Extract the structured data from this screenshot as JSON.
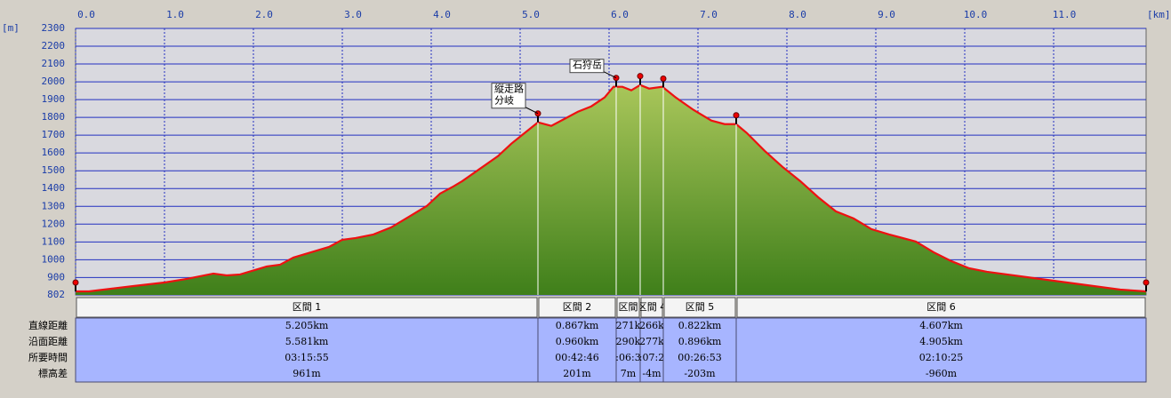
{
  "chart_data": {
    "type": "area",
    "x_unit": "[km]",
    "y_unit": "[m]",
    "xlim": [
      0,
      12.04
    ],
    "ylim": [
      802,
      2300
    ],
    "xticks": [
      {
        "value": 0,
        "label": "0.0"
      },
      {
        "value": 1,
        "label": "1.0"
      },
      {
        "value": 2,
        "label": "2.0"
      },
      {
        "value": 3,
        "label": "3.0"
      },
      {
        "value": 4,
        "label": "4.0"
      },
      {
        "value": 5,
        "label": "5.0"
      },
      {
        "value": 6,
        "label": "6.0"
      },
      {
        "value": 7,
        "label": "7.0"
      },
      {
        "value": 8,
        "label": "8.0"
      },
      {
        "value": 9,
        "label": "9.0"
      },
      {
        "value": 10,
        "label": "10.0"
      },
      {
        "value": 11,
        "label": "11.0"
      }
    ],
    "yticks": [
      802,
      900,
      1000,
      1100,
      1200,
      1300,
      1400,
      1500,
      1600,
      1700,
      1800,
      1900,
      2000,
      2100,
      2200,
      2300
    ],
    "grid": true,
    "series": [
      {
        "color": "#ee1111",
        "x": [
          0,
          0.15,
          0.65,
          1.0,
          1.25,
          1.55,
          1.7,
          1.85,
          2.15,
          2.3,
          2.45,
          2.65,
          2.85,
          3.0,
          3.15,
          3.35,
          3.55,
          3.75,
          3.95,
          4.1,
          4.25,
          4.35,
          4.55,
          4.75,
          4.9,
          5.05,
          5.2,
          5.35,
          5.5,
          5.65,
          5.8,
          5.95,
          6.05,
          6.15,
          6.25,
          6.35,
          6.45,
          6.6,
          6.75,
          6.95,
          7.15,
          7.3,
          7.43,
          7.55,
          7.75,
          7.95,
          8.15,
          8.35,
          8.55,
          8.75,
          8.95,
          9.15,
          9.45,
          9.65,
          9.85,
          10.05,
          10.25,
          10.55,
          10.85,
          11.15,
          11.45,
          11.75,
          12.04
        ],
        "values": [
          822,
          822,
          852,
          872,
          892,
          922,
          912,
          917,
          962,
          972,
          1012,
          1042,
          1072,
          1112,
          1122,
          1142,
          1182,
          1242,
          1302,
          1372,
          1412,
          1442,
          1512,
          1582,
          1652,
          1712,
          1772,
          1752,
          1792,
          1832,
          1862,
          1912,
          1972,
          1972,
          1952,
          1982,
          1962,
          1972,
          1912,
          1842,
          1782,
          1762,
          1762,
          1712,
          1612,
          1522,
          1442,
          1352,
          1272,
          1232,
          1172,
          1142,
          1102,
          1042,
          992,
          952,
          932,
          912,
          892,
          872,
          852,
          832,
          822
        ]
      }
    ],
    "waypoints": [
      0,
      5.2,
      6.08,
      6.35,
      6.61,
      7.43,
      12.04
    ],
    "annotations": [
      {
        "x": 5.2,
        "lines": [
          "縦走路",
          "分岐"
        ]
      },
      {
        "x": 6.08,
        "lines": [
          "石狩岳"
        ]
      }
    ]
  },
  "table": {
    "headers": [
      "区間 1",
      "区間 2",
      "区間",
      "区間 4",
      "区間 5",
      "区間 6"
    ],
    "row_labels": [
      "直線距離",
      "沿面距離",
      "所要時間",
      "標高差"
    ],
    "rows": [
      [
        "5.205km",
        "0.867km",
        "271k",
        "266k",
        "0.822km",
        "4.607km"
      ],
      [
        "5.581km",
        "0.960km",
        "290k",
        "277k",
        "0.896km",
        "4.905km"
      ],
      [
        "03:15:55",
        "00:42:46",
        ":06:3",
        ":07:2",
        "00:26:53",
        "02:10:25"
      ],
      [
        "961m",
        "201m",
        "7m",
        "-4m",
        "-203m",
        "-960m"
      ]
    ]
  }
}
